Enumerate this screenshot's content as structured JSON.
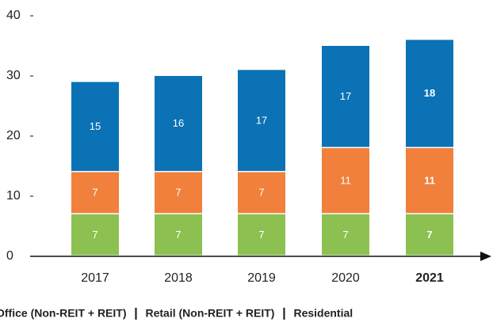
{
  "chart_data": {
    "type": "stacked_bar",
    "categories": [
      "2017",
      "2018",
      "2019",
      "2020",
      "2021"
    ],
    "series": [
      {
        "name": "Office (Non-REIT + REIT)",
        "color": "#8cc152",
        "values": [
          7,
          7,
          7,
          7,
          7
        ]
      },
      {
        "name": "Retail (Non-REIT + REIT)",
        "color": "#f0803c",
        "values": [
          7,
          7,
          7,
          11,
          11
        ]
      },
      {
        "name": "Residential",
        "color": "#0b72b5",
        "values": [
          15,
          16,
          17,
          17,
          18
        ]
      }
    ],
    "ylim": [
      0,
      40
    ],
    "yticks": [
      0,
      10,
      20,
      30,
      40
    ],
    "grid": false
  }
}
